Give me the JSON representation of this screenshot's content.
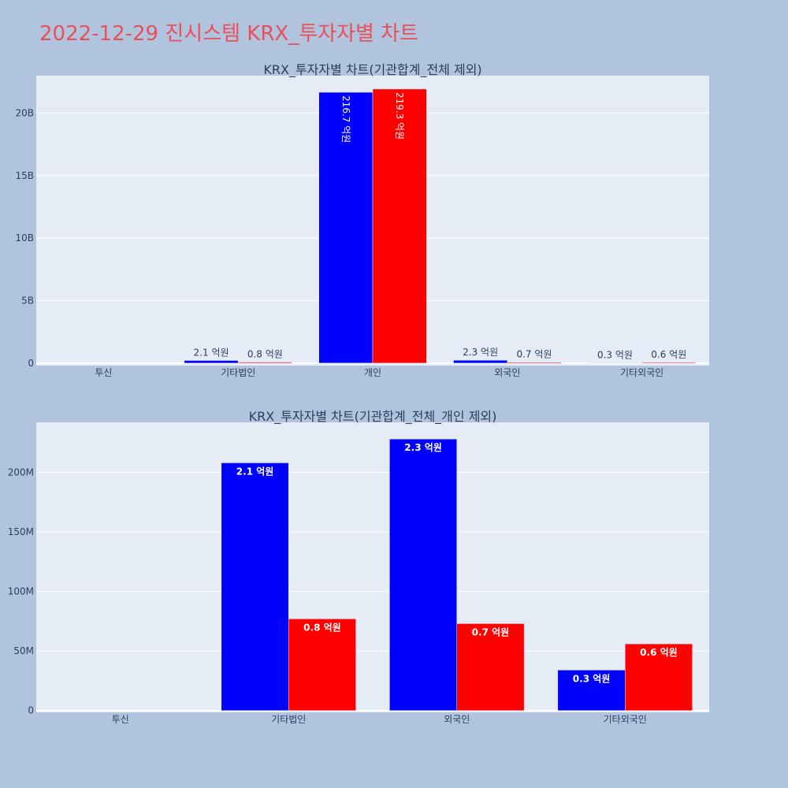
{
  "page_title": "2022-12-29 진시스템 KRX_투자자별 차트",
  "colors": {
    "buy": "#0000ff",
    "sell": "#ff0000",
    "title": "#e8505b",
    "background": "#b0c4de",
    "plot_bg": "#e5ecf6"
  },
  "chart_data": [
    {
      "type": "bar",
      "title": "KRX_투자자별 차트(기관합계_전체 제외)",
      "categories": [
        "투신",
        "기타법인",
        "개인",
        "외국인",
        "기타외국인"
      ],
      "series": [
        {
          "color": "#0000ff",
          "values": [
            0,
            210000000,
            21670000000,
            230000000,
            30000000
          ],
          "labels": [
            "",
            "2.1 억원",
            "216.7 억원",
            "2.3 억원",
            "0.3 억원"
          ]
        },
        {
          "color": "#ff0000",
          "values": [
            0,
            80000000,
            21930000000,
            70000000,
            60000000
          ],
          "labels": [
            "",
            "0.8 억원",
            "219.3 억원",
            "0.7 억원",
            "0.6 억원"
          ]
        }
      ],
      "yticks": [
        0,
        5000000000,
        10000000000,
        15000000000,
        20000000000
      ],
      "ytick_labels": [
        "0",
        "5B",
        "10B",
        "15B",
        "20B"
      ],
      "ylim": [
        -200000000,
        23000000000
      ],
      "grid": true
    },
    {
      "type": "bar",
      "title": "KRX_투자자별 차트(기관합계_전체_개인 제외)",
      "categories": [
        "투신",
        "기타법인",
        "외국인",
        "기타외국인"
      ],
      "series": [
        {
          "color": "#0000ff",
          "values": [
            0,
            208000000,
            228000000,
            34000000
          ],
          "labels": [
            "",
            "2.1 억원",
            "2.3 억원",
            "0.3 억원"
          ]
        },
        {
          "color": "#ff0000",
          "values": [
            0,
            77000000,
            73000000,
            56000000
          ],
          "labels": [
            "",
            "0.8 억원",
            "0.7 억원",
            "0.6 억원"
          ]
        }
      ],
      "yticks": [
        0,
        50000000,
        100000000,
        150000000,
        200000000
      ],
      "ytick_labels": [
        "0",
        "50M",
        "100M",
        "150M",
        "200M"
      ],
      "ylim": [
        -1500000,
        242000000
      ],
      "grid": true
    }
  ]
}
